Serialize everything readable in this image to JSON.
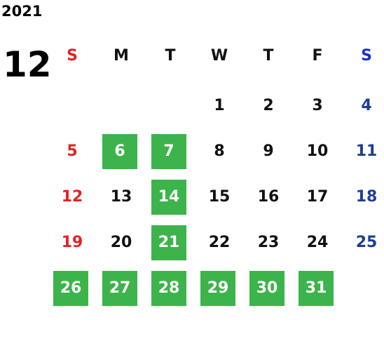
{
  "year": "2021",
  "month": "12",
  "weekdays": [
    "S",
    "M",
    "T",
    "W",
    "T",
    "F",
    "S"
  ],
  "weeks": [
    [
      null,
      null,
      null,
      1,
      2,
      3,
      4
    ],
    [
      5,
      6,
      7,
      8,
      9,
      10,
      11
    ],
    [
      12,
      13,
      14,
      15,
      16,
      17,
      18
    ],
    [
      19,
      20,
      21,
      22,
      23,
      24,
      25
    ],
    [
      26,
      27,
      28,
      29,
      30,
      31,
      null
    ]
  ],
  "highlighted": [
    6,
    7,
    14,
    21,
    26,
    27,
    28,
    29,
    30,
    31
  ],
  "colors": {
    "sunday": "#e02424",
    "saturday": "#1e3d96",
    "saturday_header": "#1a2fd6",
    "weekday": "#111111",
    "highlight": "#3cb44b",
    "highlight_text": "#ffffff"
  }
}
